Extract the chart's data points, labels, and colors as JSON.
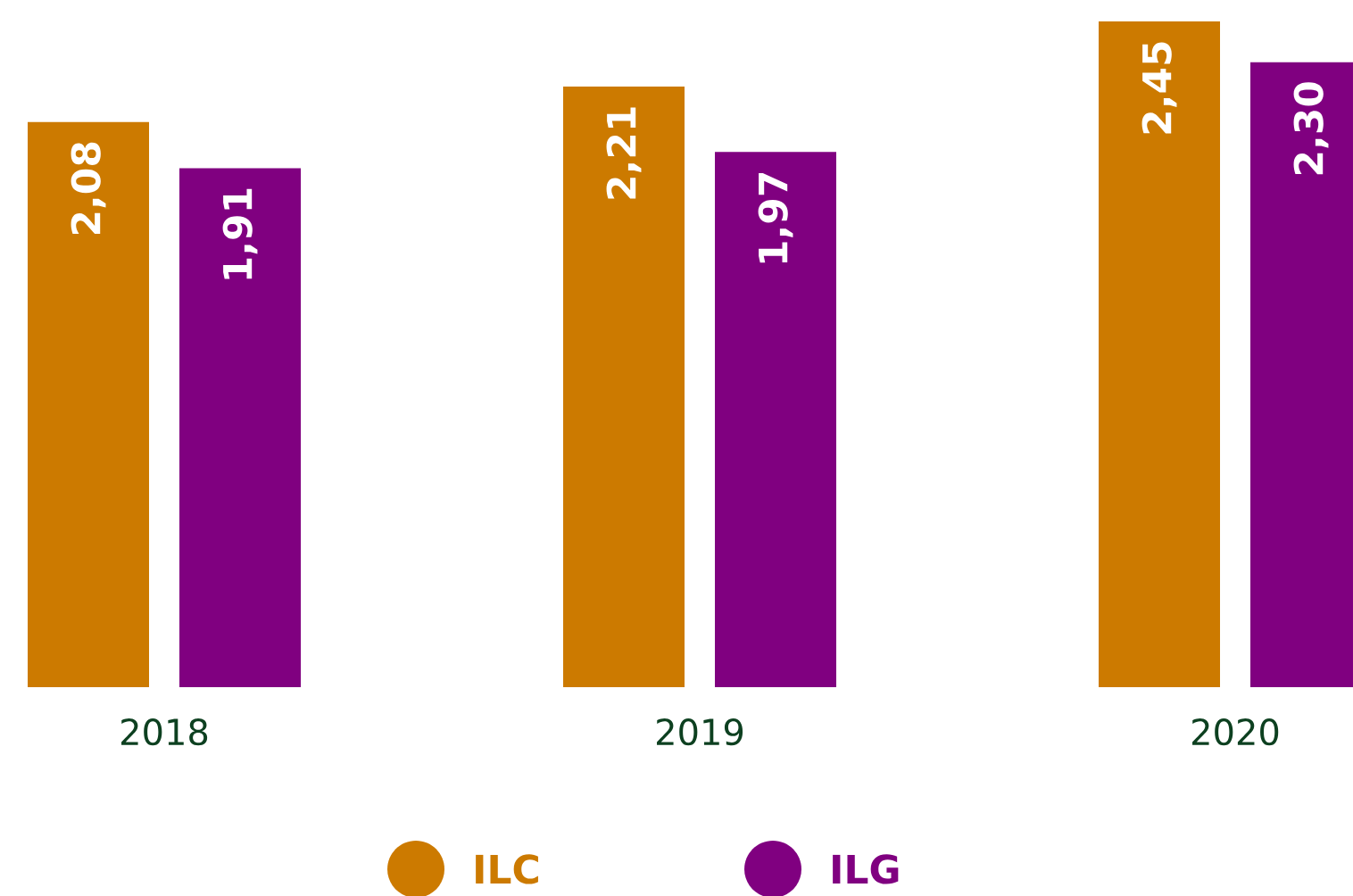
{
  "chart_data": {
    "type": "bar",
    "categories": [
      "2018",
      "2019",
      "2020"
    ],
    "series": [
      {
        "name": "ILC",
        "color": "#cc7a00",
        "values": [
          2.08,
          2.21,
          2.45
        ],
        "value_labels": [
          "2,08",
          "2,21",
          "2,45"
        ]
      },
      {
        "name": "ILG",
        "color": "#800080",
        "values": [
          1.91,
          1.97,
          2.3
        ],
        "value_labels": [
          "1,91",
          "1,97",
          "2,30"
        ]
      }
    ],
    "legend": "bottom",
    "tick_labels": "x"
  }
}
